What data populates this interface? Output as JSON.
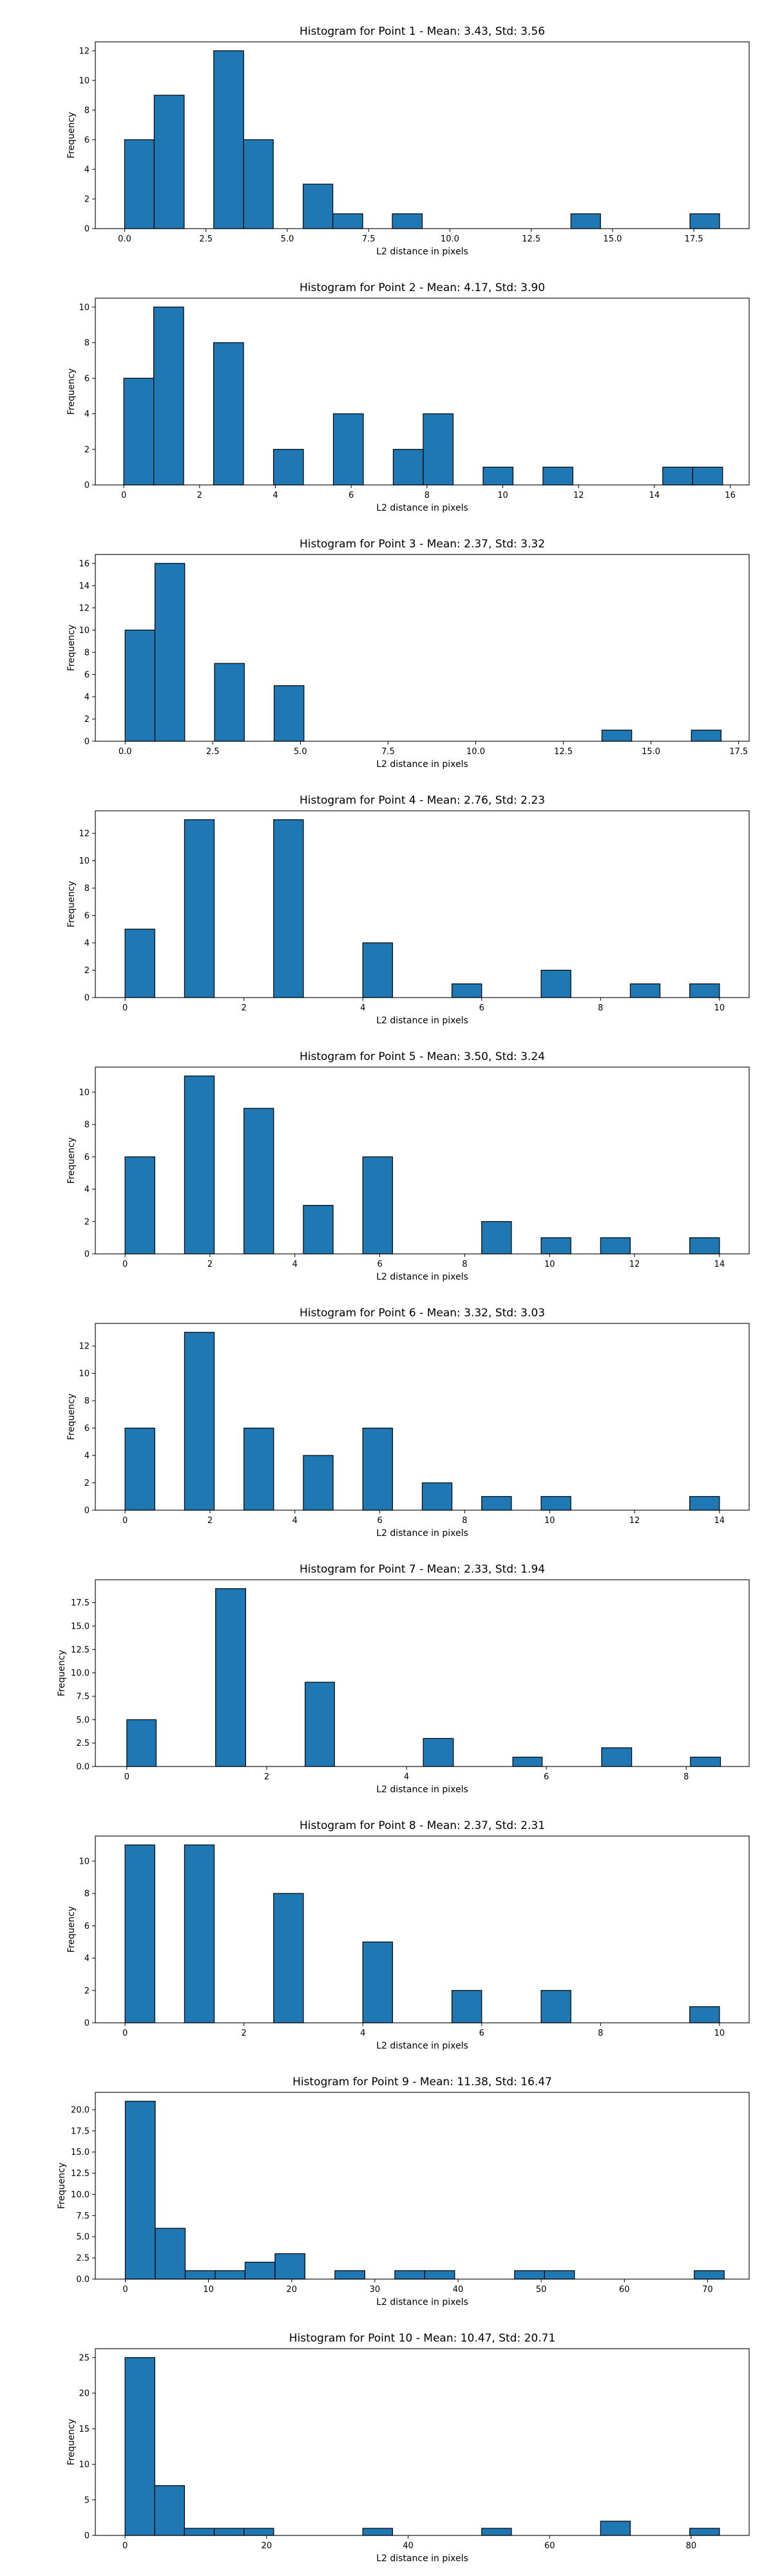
{
  "chart_data": [
    {
      "type": "bar",
      "title": "Histogram for Point 1 - Mean: 3.43, Std: 3.56",
      "xlabel": "L2 distance in pixels",
      "ylabel": "Frequency",
      "xlim": [
        -0.9,
        19.2
      ],
      "ylim": [
        0,
        12.6
      ],
      "xticks": [
        0.0,
        2.5,
        5.0,
        7.5,
        10.0,
        12.5,
        15.0,
        17.5
      ],
      "xtick_labels": [
        "0.0",
        "2.5",
        "5.0",
        "7.5",
        "10.0",
        "12.5",
        "15.0",
        "17.5"
      ],
      "yticks": [
        0,
        2,
        4,
        6,
        8,
        10,
        12
      ],
      "ytick_labels": [
        "0",
        "2",
        "4",
        "6",
        "8",
        "10",
        "12"
      ],
      "bins": [
        {
          "x0": 0.0,
          "x1": 0.91,
          "count": 6
        },
        {
          "x0": 0.91,
          "x1": 1.83,
          "count": 9
        },
        {
          "x0": 2.74,
          "x1": 3.66,
          "count": 12
        },
        {
          "x0": 3.66,
          "x1": 4.57,
          "count": 6
        },
        {
          "x0": 5.49,
          "x1": 6.4,
          "count": 3
        },
        {
          "x0": 6.4,
          "x1": 7.32,
          "count": 1
        },
        {
          "x0": 8.23,
          "x1": 9.15,
          "count": 1
        },
        {
          "x0": 13.72,
          "x1": 14.63,
          "count": 1
        },
        {
          "x0": 17.38,
          "x1": 18.29,
          "count": 1
        }
      ],
      "grid": false,
      "bar_color": "#1f77b4"
    },
    {
      "type": "bar",
      "title": "Histogram for Point 2 - Mean: 4.17, Std: 3.90",
      "xlabel": "L2 distance in pixels",
      "ylabel": "Frequency",
      "xlim": [
        -0.75,
        16.5
      ],
      "ylim": [
        0,
        10.5
      ],
      "xticks": [
        0,
        2,
        4,
        6,
        8,
        10,
        12,
        14,
        16
      ],
      "xtick_labels": [
        "0",
        "2",
        "4",
        "6",
        "8",
        "10",
        "12",
        "14",
        "16"
      ],
      "yticks": [
        0,
        2,
        4,
        6,
        8,
        10
      ],
      "ytick_labels": [
        "0",
        "2",
        "4",
        "6",
        "8",
        "10"
      ],
      "bins": [
        {
          "x0": 0.0,
          "x1": 0.79,
          "count": 6
        },
        {
          "x0": 0.79,
          "x1": 1.58,
          "count": 10
        },
        {
          "x0": 2.37,
          "x1": 3.16,
          "count": 8
        },
        {
          "x0": 3.95,
          "x1": 4.74,
          "count": 2
        },
        {
          "x0": 5.53,
          "x1": 6.32,
          "count": 4
        },
        {
          "x0": 7.11,
          "x1": 7.9,
          "count": 2
        },
        {
          "x0": 7.9,
          "x1": 8.69,
          "count": 4
        },
        {
          "x0": 9.48,
          "x1": 10.27,
          "count": 1
        },
        {
          "x0": 11.06,
          "x1": 11.85,
          "count": 1
        },
        {
          "x0": 14.22,
          "x1": 15.01,
          "count": 1
        },
        {
          "x0": 15.01,
          "x1": 15.8,
          "count": 1
        }
      ],
      "grid": false,
      "bar_color": "#1f77b4"
    },
    {
      "type": "bar",
      "title": "Histogram for Point 3 - Mean: 2.37, Std: 3.32",
      "xlabel": "L2 distance in pixels",
      "ylabel": "Frequency",
      "xlim": [
        -0.85,
        17.8
      ],
      "ylim": [
        0,
        16.8
      ],
      "xticks": [
        0.0,
        2.5,
        5.0,
        7.5,
        10.0,
        12.5,
        15.0,
        17.5
      ],
      "xtick_labels": [
        "0.0",
        "2.5",
        "5.0",
        "7.5",
        "10.0",
        "12.5",
        "15.0",
        "17.5"
      ],
      "yticks": [
        0,
        2,
        4,
        6,
        8,
        10,
        12,
        14,
        16
      ],
      "ytick_labels": [
        "0",
        "2",
        "4",
        "6",
        "8",
        "10",
        "12",
        "14",
        "16"
      ],
      "bins": [
        {
          "x0": 0.0,
          "x1": 0.85,
          "count": 10
        },
        {
          "x0": 0.85,
          "x1": 1.7,
          "count": 16
        },
        {
          "x0": 2.55,
          "x1": 3.4,
          "count": 7
        },
        {
          "x0": 4.25,
          "x1": 5.1,
          "count": 5
        },
        {
          "x0": 13.6,
          "x1": 14.45,
          "count": 1
        },
        {
          "x0": 16.15,
          "x1": 17.0,
          "count": 1
        }
      ],
      "grid": false,
      "bar_color": "#1f77b4"
    },
    {
      "type": "bar",
      "title": "Histogram for Point 4 - Mean: 2.76, Std: 2.23",
      "xlabel": "L2 distance in pixels",
      "ylabel": "Frequency",
      "xlim": [
        -0.5,
        10.5
      ],
      "ylim": [
        0,
        13.65
      ],
      "xticks": [
        0,
        2,
        4,
        6,
        8,
        10
      ],
      "xtick_labels": [
        "0",
        "2",
        "4",
        "6",
        "8",
        "10"
      ],
      "yticks": [
        0,
        2,
        4,
        6,
        8,
        10,
        12
      ],
      "ytick_labels": [
        "0",
        "2",
        "4",
        "6",
        "8",
        "10",
        "12"
      ],
      "bins": [
        {
          "x0": 0.0,
          "x1": 0.5,
          "count": 5
        },
        {
          "x0": 1.0,
          "x1": 1.5,
          "count": 13
        },
        {
          "x0": 2.5,
          "x1": 3.0,
          "count": 13
        },
        {
          "x0": 4.0,
          "x1": 4.5,
          "count": 4
        },
        {
          "x0": 5.5,
          "x1": 6.0,
          "count": 1
        },
        {
          "x0": 7.0,
          "x1": 7.5,
          "count": 2
        },
        {
          "x0": 8.5,
          "x1": 9.0,
          "count": 1
        },
        {
          "x0": 9.5,
          "x1": 10.0,
          "count": 1
        }
      ],
      "grid": false,
      "bar_color": "#1f77b4"
    },
    {
      "type": "bar",
      "title": "Histogram for Point 5 - Mean: 3.50, Std: 3.24",
      "xlabel": "L2 distance in pixels",
      "ylabel": "Frequency",
      "xlim": [
        -0.7,
        14.7
      ],
      "ylim": [
        0,
        11.55
      ],
      "xticks": [
        0,
        2,
        4,
        6,
        8,
        10,
        12,
        14
      ],
      "xtick_labels": [
        "0",
        "2",
        "4",
        "6",
        "8",
        "10",
        "12",
        "14"
      ],
      "yticks": [
        0,
        2,
        4,
        6,
        8,
        10
      ],
      "ytick_labels": [
        "0",
        "2",
        "4",
        "6",
        "8",
        "10"
      ],
      "bins": [
        {
          "x0": 0.0,
          "x1": 0.7,
          "count": 6
        },
        {
          "x0": 1.4,
          "x1": 2.1,
          "count": 11
        },
        {
          "x0": 2.8,
          "x1": 3.5,
          "count": 9
        },
        {
          "x0": 4.2,
          "x1": 4.9,
          "count": 3
        },
        {
          "x0": 5.6,
          "x1": 6.3,
          "count": 6
        },
        {
          "x0": 8.4,
          "x1": 9.1,
          "count": 2
        },
        {
          "x0": 9.8,
          "x1": 10.5,
          "count": 1
        },
        {
          "x0": 11.2,
          "x1": 11.9,
          "count": 1
        },
        {
          "x0": 13.3,
          "x1": 14.0,
          "count": 1
        }
      ],
      "grid": false,
      "bar_color": "#1f77b4"
    },
    {
      "type": "bar",
      "title": "Histogram for Point 6 - Mean: 3.32, Std: 3.03",
      "xlabel": "L2 distance in pixels",
      "ylabel": "Frequency",
      "xlim": [
        -0.7,
        14.7
      ],
      "ylim": [
        0,
        13.65
      ],
      "xticks": [
        0,
        2,
        4,
        6,
        8,
        10,
        12,
        14
      ],
      "xtick_labels": [
        "0",
        "2",
        "4",
        "6",
        "8",
        "10",
        "12",
        "14"
      ],
      "yticks": [
        0,
        2,
        4,
        6,
        8,
        10,
        12
      ],
      "ytick_labels": [
        "0",
        "2",
        "4",
        "6",
        "8",
        "10",
        "12"
      ],
      "bins": [
        {
          "x0": 0.0,
          "x1": 0.7,
          "count": 6
        },
        {
          "x0": 1.4,
          "x1": 2.1,
          "count": 13
        },
        {
          "x0": 2.8,
          "x1": 3.5,
          "count": 6
        },
        {
          "x0": 4.2,
          "x1": 4.9,
          "count": 4
        },
        {
          "x0": 5.6,
          "x1": 6.3,
          "count": 6
        },
        {
          "x0": 7.0,
          "x1": 7.7,
          "count": 2
        },
        {
          "x0": 8.4,
          "x1": 9.1,
          "count": 1
        },
        {
          "x0": 9.8,
          "x1": 10.5,
          "count": 1
        },
        {
          "x0": 13.3,
          "x1": 14.0,
          "count": 1
        }
      ],
      "grid": false,
      "bar_color": "#1f77b4"
    },
    {
      "type": "bar",
      "title": "Histogram for Point 7 - Mean: 2.33, Std: 1.94",
      "xlabel": "L2 distance in pixels",
      "ylabel": "Frequency",
      "xlim": [
        -0.45,
        8.9
      ],
      "ylim": [
        0,
        19.95
      ],
      "xticks": [
        0,
        2,
        4,
        6,
        8
      ],
      "xtick_labels": [
        "0",
        "2",
        "4",
        "6",
        "8"
      ],
      "yticks": [
        0.0,
        2.5,
        5.0,
        7.5,
        10.0,
        12.5,
        15.0,
        17.5
      ],
      "ytick_labels": [
        "0.0",
        "2.5",
        "5.0",
        "7.5",
        "10.0",
        "12.5",
        "15.0",
        "17.5"
      ],
      "bins": [
        {
          "x0": 0.0,
          "x1": 0.42,
          "count": 5
        },
        {
          "x0": 1.27,
          "x1": 1.7,
          "count": 19
        },
        {
          "x0": 2.55,
          "x1": 2.97,
          "count": 9
        },
        {
          "x0": 4.24,
          "x1": 4.67,
          "count": 3
        },
        {
          "x0": 5.52,
          "x1": 5.94,
          "count": 1
        },
        {
          "x0": 6.79,
          "x1": 7.22,
          "count": 2
        },
        {
          "x0": 8.06,
          "x1": 8.49,
          "count": 1
        }
      ],
      "grid": false,
      "bar_color": "#1f77b4"
    },
    {
      "type": "bar",
      "title": "Histogram for Point 8 - Mean: 2.37, Std: 2.31",
      "xlabel": "L2 distance in pixels",
      "ylabel": "Frequency",
      "xlim": [
        -0.5,
        10.5
      ],
      "ylim": [
        0,
        11.55
      ],
      "xticks": [
        0,
        2,
        4,
        6,
        8,
        10
      ],
      "xtick_labels": [
        "0",
        "2",
        "4",
        "6",
        "8",
        "10"
      ],
      "yticks": [
        0,
        2,
        4,
        6,
        8,
        10
      ],
      "ytick_labels": [
        "0",
        "2",
        "4",
        "6",
        "8",
        "10"
      ],
      "bins": [
        {
          "x0": 0.0,
          "x1": 0.5,
          "count": 11
        },
        {
          "x0": 1.0,
          "x1": 1.5,
          "count": 11
        },
        {
          "x0": 2.5,
          "x1": 3.0,
          "count": 8
        },
        {
          "x0": 4.0,
          "x1": 4.5,
          "count": 5
        },
        {
          "x0": 5.5,
          "x1": 6.0,
          "count": 2
        },
        {
          "x0": 7.0,
          "x1": 7.5,
          "count": 2
        },
        {
          "x0": 9.5,
          "x1": 10.0,
          "count": 1
        }
      ],
      "grid": false,
      "bar_color": "#1f77b4"
    },
    {
      "type": "bar",
      "title": "Histogram for Point 9 - Mean: 11.38, Std: 16.47",
      "xlabel": "L2 distance in pixels",
      "ylabel": "Frequency",
      "xlim": [
        -3.6,
        75.0
      ],
      "ylim": [
        0,
        22.05
      ],
      "xticks": [
        0,
        10,
        20,
        30,
        40,
        50,
        60,
        70
      ],
      "xtick_labels": [
        "0",
        "10",
        "20",
        "30",
        "40",
        "50",
        "60",
        "70"
      ],
      "yticks": [
        0.0,
        2.5,
        5.0,
        7.5,
        10.0,
        12.5,
        15.0,
        17.5,
        20.0
      ],
      "ytick_labels": [
        "0.0",
        "2.5",
        "5.0",
        "7.5",
        "10.0",
        "12.5",
        "15.0",
        "17.5",
        "20.0"
      ],
      "bins": [
        {
          "x0": 0.0,
          "x1": 3.6,
          "count": 21
        },
        {
          "x0": 3.6,
          "x1": 7.2,
          "count": 6
        },
        {
          "x0": 7.2,
          "x1": 10.8,
          "count": 1
        },
        {
          "x0": 10.8,
          "x1": 14.4,
          "count": 1
        },
        {
          "x0": 14.4,
          "x1": 18.0,
          "count": 2
        },
        {
          "x0": 18.0,
          "x1": 21.6,
          "count": 3
        },
        {
          "x0": 25.2,
          "x1": 28.8,
          "count": 1
        },
        {
          "x0": 32.4,
          "x1": 36.0,
          "count": 1
        },
        {
          "x0": 36.0,
          "x1": 39.6,
          "count": 1
        },
        {
          "x0": 46.8,
          "x1": 50.4,
          "count": 1
        },
        {
          "x0": 50.4,
          "x1": 54.0,
          "count": 1
        },
        {
          "x0": 68.4,
          "x1": 72.0,
          "count": 1
        }
      ],
      "grid": false,
      "bar_color": "#1f77b4"
    },
    {
      "type": "bar",
      "title": "Histogram for Point 10 - Mean: 10.47, Std: 20.71",
      "xlabel": "L2 distance in pixels",
      "ylabel": "Frequency",
      "xlim": [
        -4.2,
        88.2
      ],
      "ylim": [
        0,
        26.25
      ],
      "xticks": [
        0,
        20,
        40,
        60,
        80
      ],
      "xtick_labels": [
        "0",
        "20",
        "40",
        "60",
        "80"
      ],
      "yticks": [
        0,
        5,
        10,
        15,
        20,
        25
      ],
      "ytick_labels": [
        "0",
        "5",
        "10",
        "15",
        "20",
        "25"
      ],
      "bins": [
        {
          "x0": 0.0,
          "x1": 4.2,
          "count": 25
        },
        {
          "x0": 4.2,
          "x1": 8.4,
          "count": 7
        },
        {
          "x0": 8.4,
          "x1": 12.6,
          "count": 1
        },
        {
          "x0": 12.6,
          "x1": 16.8,
          "count": 1
        },
        {
          "x0": 16.8,
          "x1": 21.0,
          "count": 1
        },
        {
          "x0": 33.6,
          "x1": 37.8,
          "count": 1
        },
        {
          "x0": 50.4,
          "x1": 54.6,
          "count": 1
        },
        {
          "x0": 67.2,
          "x1": 71.4,
          "count": 2
        },
        {
          "x0": 79.8,
          "x1": 84.0,
          "count": 1
        }
      ],
      "grid": false,
      "bar_color": "#1f77b4"
    }
  ]
}
